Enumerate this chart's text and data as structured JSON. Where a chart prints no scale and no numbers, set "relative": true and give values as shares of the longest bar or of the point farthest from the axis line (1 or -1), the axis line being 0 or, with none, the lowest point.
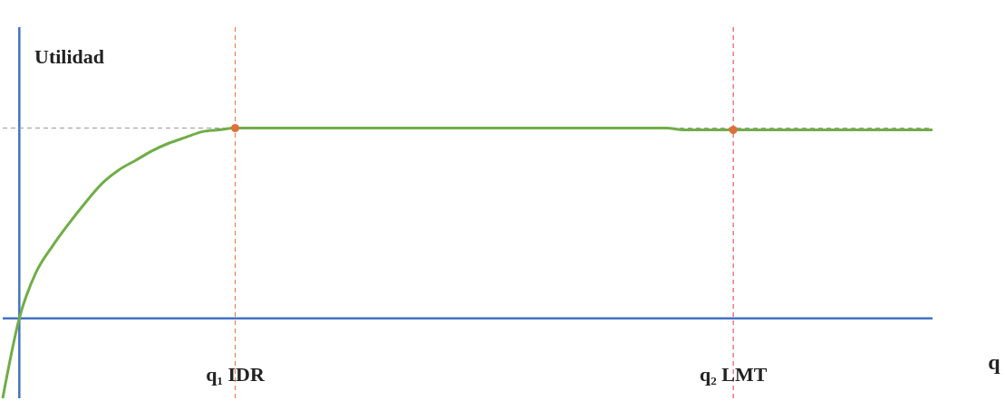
{
  "chart_data": {
    "type": "line",
    "relative": true,
    "xlabel": "q",
    "ylabel": "Utilidad",
    "marker": "none",
    "line_style": "solid",
    "tick_labels": "x",
    "categories": [
      null,
      null,
      null,
      null,
      null,
      null,
      null,
      null,
      null,
      null,
      null,
      null,
      null,
      null,
      "q₁ IDR",
      null,
      null,
      null,
      null,
      null,
      null,
      null,
      null,
      null,
      null,
      null,
      null,
      null,
      null,
      null,
      null,
      null,
      null,
      null,
      null,
      null,
      null,
      null,
      null,
      null,
      null,
      null,
      null,
      null,
      "q₂ LMT",
      null,
      null,
      null,
      null,
      null,
      null,
      null,
      null,
      null,
      null,
      null,
      null
    ],
    "series": [
      {
        "color": "#70ad47",
        "values": [
          -0.42,
          0,
          0.24,
          0.38,
          0.5,
          0.61,
          0.71,
          0.78,
          0.83,
          0.88,
          0.92,
          0.95,
          0.98,
          0.99,
          1,
          1,
          1,
          1,
          1,
          1,
          1,
          1,
          1,
          1,
          1,
          1,
          1,
          1,
          1,
          1,
          1,
          1,
          1,
          1,
          1,
          1,
          1,
          1,
          1,
          1,
          1,
          0.99,
          0.99,
          0.99,
          0.99,
          0.99,
          0.99,
          0.99,
          0.99,
          0.99,
          0.99,
          0.99,
          0.99,
          0.99,
          0.99,
          0.99,
          0.99
        ]
      },
      {
        "type": "scatter",
        "color": "#e0703a",
        "marker": "circle",
        "x": [
          "q₁ IDR",
          "q₂ LMT"
        ],
        "values": [
          1,
          0.99
        ]
      }
    ],
    "ref_lines": [
      {
        "axis": "x",
        "value": "q₁ IDR",
        "color": "#e8743b",
        "line_style": "dashed"
      },
      {
        "axis": "x",
        "value": "q₂ LMT",
        "color": "#e03c3c",
        "line_style": "dashed"
      },
      {
        "axis": "y",
        "value": 1,
        "color": "#999999",
        "line_style": "dashed"
      }
    ]
  }
}
